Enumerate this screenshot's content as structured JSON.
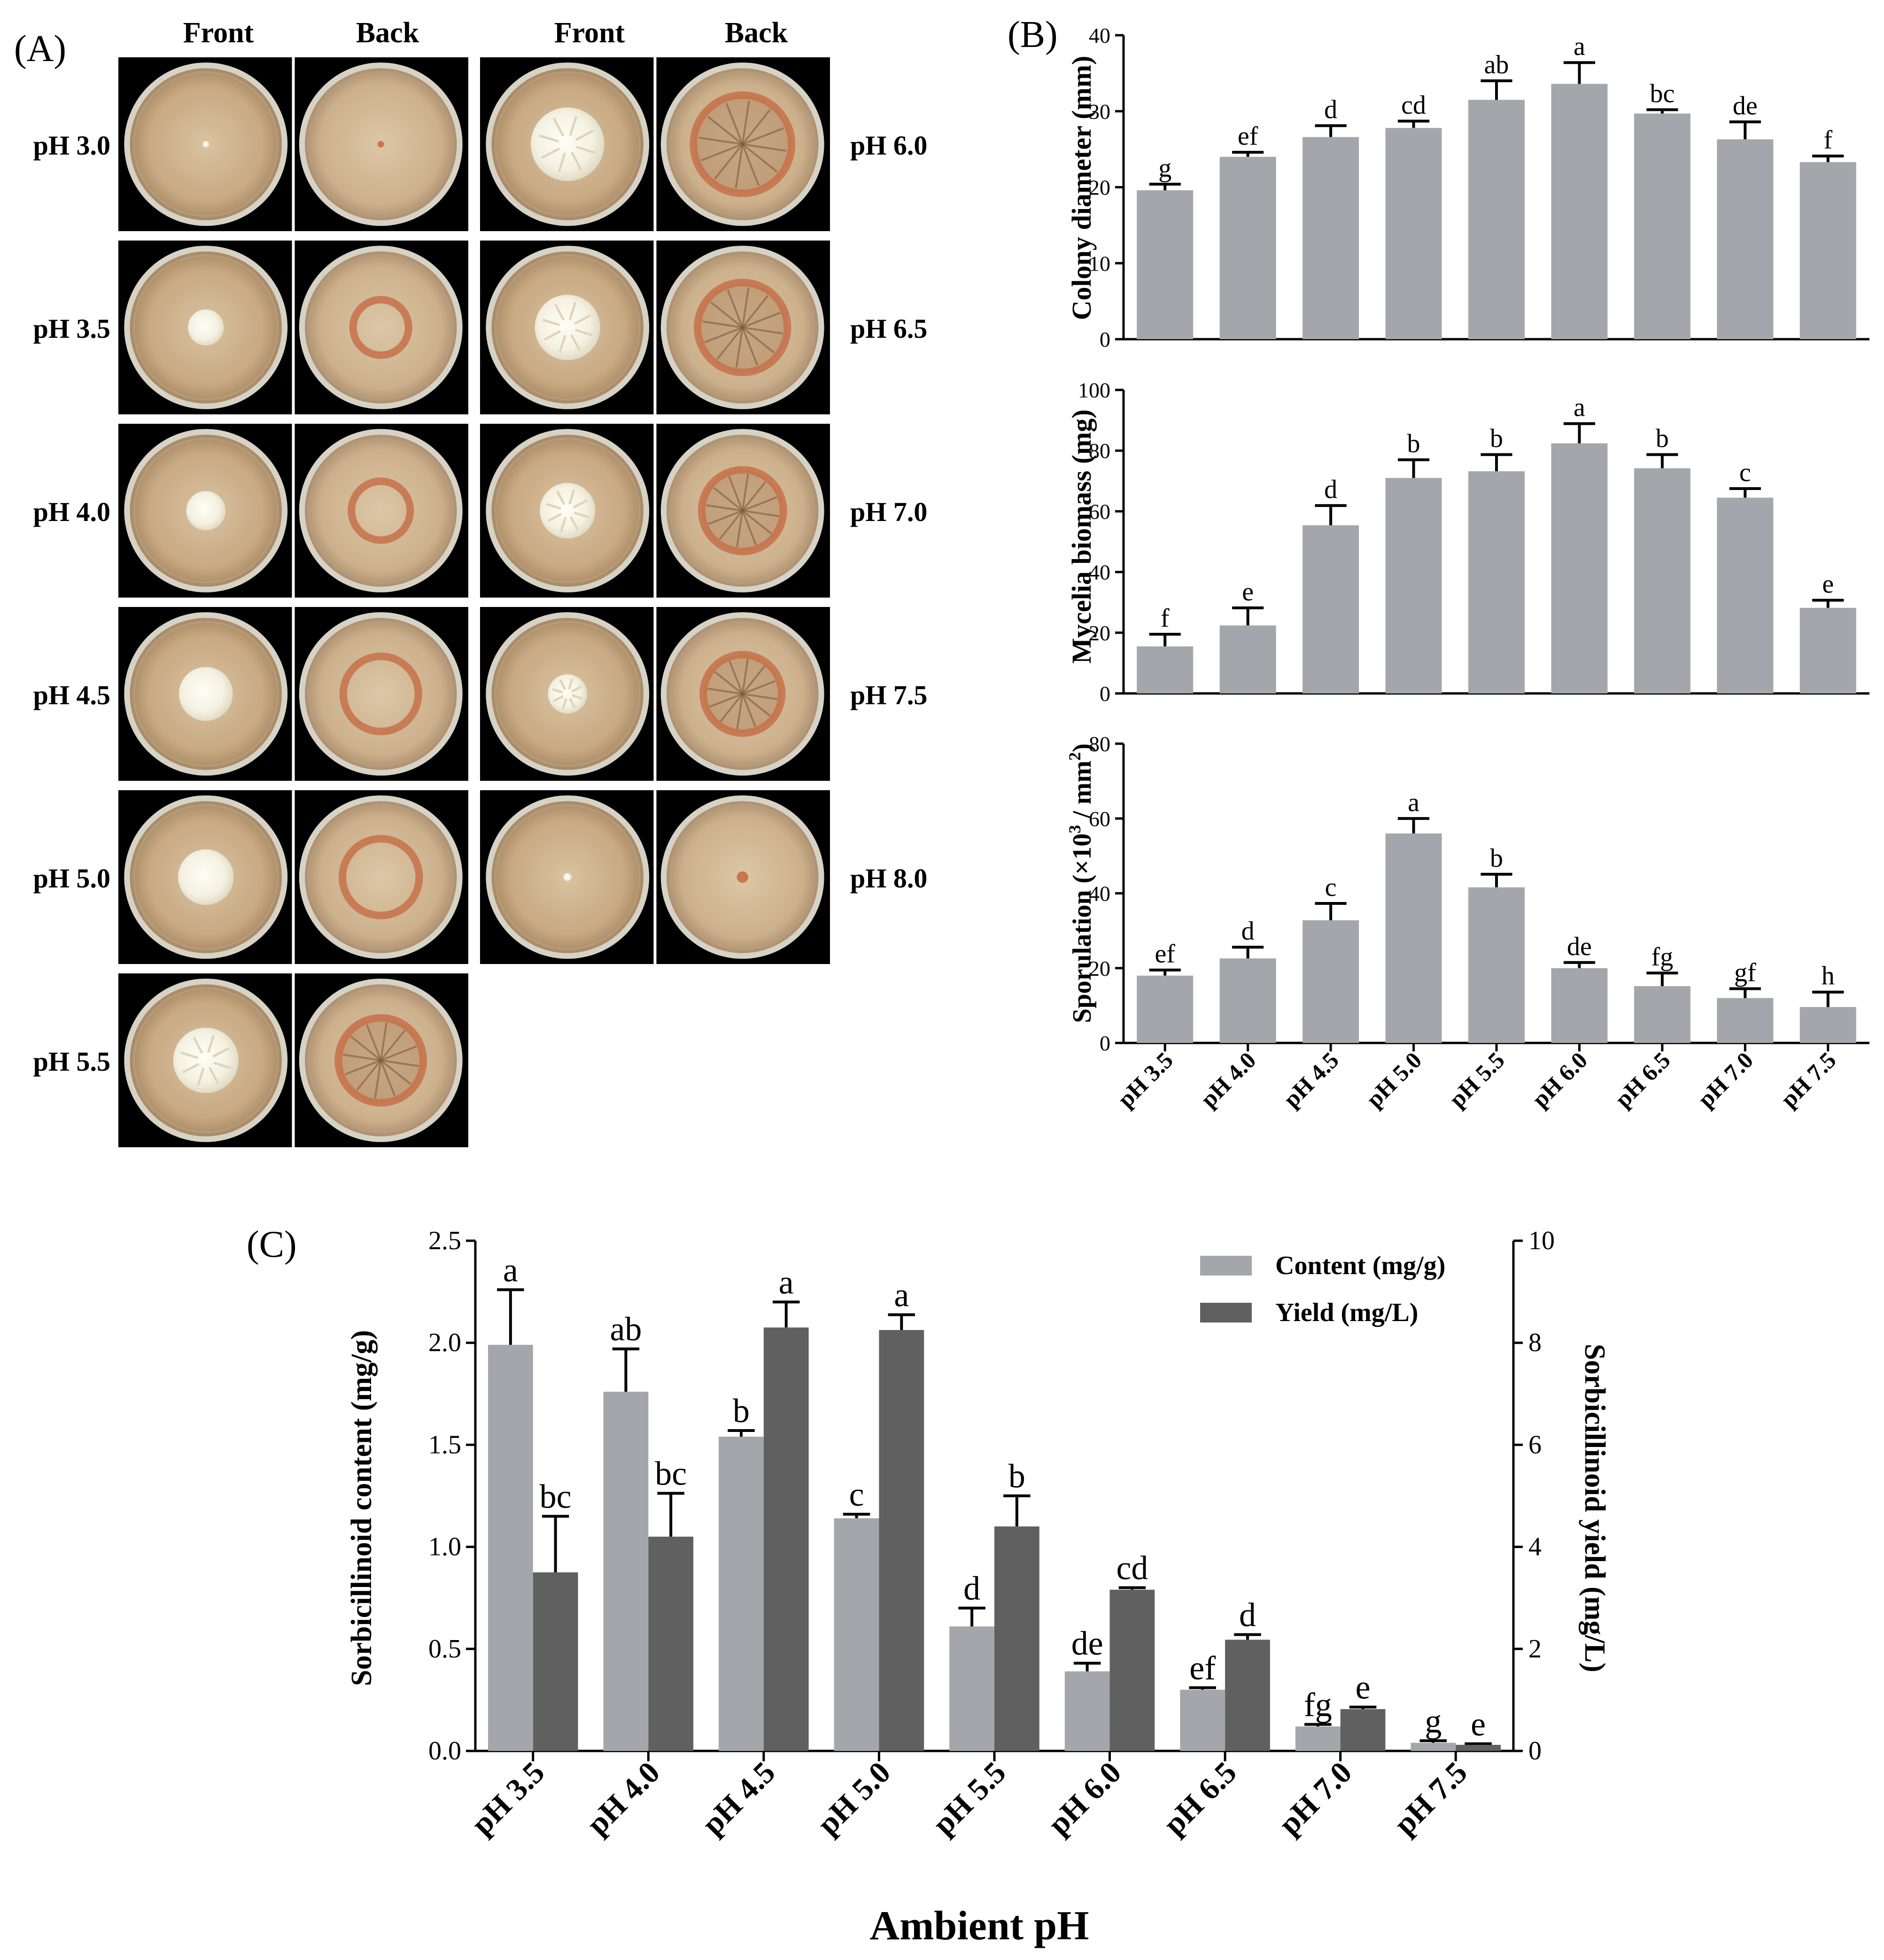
{
  "panel_a": {
    "label": "(A)",
    "col_headers": [
      "Front",
      "Back",
      "Front",
      "Back"
    ],
    "left_column": [
      {
        "ph": "pH 3.0",
        "colony": 0.04,
        "ring": 0.04,
        "cracks": false
      },
      {
        "ph": "pH 3.5",
        "colony": 0.22,
        "ring": 0.34,
        "cracks": false
      },
      {
        "ph": "pH 4.0",
        "colony": 0.24,
        "ring": 0.36,
        "cracks": false
      },
      {
        "ph": "pH 4.5",
        "colony": 0.33,
        "ring": 0.46,
        "cracks": false
      },
      {
        "ph": "pH 5.0",
        "colony": 0.34,
        "ring": 0.47,
        "cracks": false
      },
      {
        "ph": "pH 5.5",
        "colony": 0.4,
        "ring": 0.52,
        "cracks": true
      }
    ],
    "right_column": [
      {
        "ph": "pH 6.0",
        "colony": 0.45,
        "ring": 0.6,
        "cracks": true
      },
      {
        "ph": "pH 6.5",
        "colony": 0.4,
        "ring": 0.55,
        "cracks": true
      },
      {
        "ph": "pH 7.0",
        "colony": 0.34,
        "ring": 0.5,
        "cracks": true
      },
      {
        "ph": "pH 7.5",
        "colony": 0.24,
        "ring": 0.48,
        "cracks": true
      },
      {
        "ph": "pH 8.0",
        "colony": 0.05,
        "ring": 0.07,
        "cracks": false
      }
    ]
  },
  "chart_data": [
    {
      "type": "bar",
      "id": "B1",
      "panel_label": "(B)",
      "title": "",
      "ylabel": "Colony diameter (mm)",
      "xlabel": "",
      "ylim": [
        0,
        40
      ],
      "yticks": [
        "0",
        "10",
        "20",
        "30",
        "40"
      ],
      "categories": [
        "pH 3.5",
        "pH 4.0",
        "pH 4.5",
        "pH 5.0",
        "pH 5.5",
        "pH 6.0",
        "pH 6.5",
        "pH 7.0",
        "pH 7.5"
      ],
      "values": [
        19.6,
        24.0,
        26.6,
        27.8,
        31.5,
        33.6,
        29.7,
        26.3,
        23.3
      ],
      "errors": [
        0.8,
        0.6,
        1.5,
        0.9,
        2.5,
        2.8,
        0.5,
        2.3,
        0.8
      ],
      "letters": [
        "g",
        "ef",
        "d",
        "cd",
        "ab",
        "a",
        "bc",
        "de",
        "f"
      ]
    },
    {
      "type": "bar",
      "id": "B2",
      "title": "",
      "ylabel": "Mycelia biomass (mg)",
      "xlabel": "",
      "ylim": [
        0,
        100
      ],
      "yticks": [
        "0",
        "20",
        "40",
        "60",
        "80",
        "100"
      ],
      "categories": [
        "pH 3.5",
        "pH 4.0",
        "pH 4.5",
        "pH 5.0",
        "pH 5.5",
        "pH 6.0",
        "pH 6.5",
        "pH 7.0",
        "pH 7.5"
      ],
      "values": [
        15.5,
        22.4,
        55.4,
        71.0,
        73.2,
        82.4,
        74.2,
        64.5,
        28.2
      ],
      "errors": [
        4.0,
        5.8,
        6.5,
        6.0,
        5.5,
        6.5,
        4.5,
        3.0,
        2.5
      ],
      "letters": [
        "f",
        "e",
        "d",
        "b",
        "b",
        "a",
        "b",
        "c",
        "e"
      ]
    },
    {
      "type": "bar",
      "id": "B3",
      "title": "",
      "ylabel_prefix": "Sporulation (×10",
      "ylabel_sup": "3",
      "ylabel_mid": " / mm",
      "ylabel_sup2": "2",
      "ylabel_suffix": ")",
      "xlabel": "",
      "ylim": [
        0,
        80
      ],
      "yticks": [
        "0",
        "20",
        "40",
        "60",
        "80"
      ],
      "categories": [
        "pH 3.5",
        "pH 4.0",
        "pH 4.5",
        "pH 5.0",
        "pH 5.5",
        "pH 6.0",
        "pH 6.5",
        "pH 7.0",
        "pH 7.5"
      ],
      "values": [
        18.0,
        22.6,
        32.8,
        56.0,
        41.6,
        20.0,
        15.2,
        12.0,
        9.6
      ],
      "errors": [
        1.5,
        3.0,
        4.5,
        4.0,
        3.5,
        1.5,
        3.5,
        2.5,
        4.0
      ],
      "letters": [
        "ef",
        "d",
        "c",
        "a",
        "b",
        "de",
        "fg",
        "gf",
        "h"
      ]
    },
    {
      "type": "bar",
      "id": "C",
      "panel_label": "(C)",
      "title": "",
      "xlabel": "Ambient pH",
      "ylabel": "Sorbicillinoid content (mg/g)",
      "y2label": "Sorbicillinoid yield (mg/L)",
      "ylim": [
        0,
        2.5
      ],
      "y2lim": [
        0,
        10
      ],
      "yticks": [
        "0.0",
        "0.5",
        "1.0",
        "1.5",
        "2.0",
        "2.5"
      ],
      "y2ticks": [
        "0",
        "2",
        "4",
        "6",
        "8",
        "10"
      ],
      "categories": [
        "pH 3.5",
        "pH 4.0",
        "pH 4.5",
        "pH 5.0",
        "pH 5.5",
        "pH 6.0",
        "pH 6.5",
        "pH 7.0",
        "pH 7.5"
      ],
      "legend_position": "top-right",
      "series": [
        {
          "name": "Content (mg/g)",
          "axis": "left",
          "color": "#a5a6ab",
          "values": [
            1.99,
            1.76,
            1.54,
            1.14,
            0.61,
            0.39,
            0.3,
            0.12,
            0.04
          ],
          "errors": [
            0.27,
            0.21,
            0.03,
            0.02,
            0.09,
            0.04,
            0.01,
            0.01,
            0.01
          ],
          "letters": [
            "a",
            "ab",
            "b",
            "c",
            "d",
            "de",
            "ef",
            "fg",
            "g"
          ]
        },
        {
          "name": "Yield (mg/L)",
          "axis": "right",
          "color": "#606060",
          "values": [
            3.5,
            4.2,
            8.3,
            8.25,
            4.4,
            3.16,
            2.18,
            0.82,
            0.12
          ],
          "errors": [
            1.1,
            0.85,
            0.5,
            0.3,
            0.6,
            0.04,
            0.1,
            0.04,
            0.02
          ],
          "letters": [
            "bc",
            "bc",
            "a",
            "a",
            "b",
            "cd",
            "d",
            "e",
            "e"
          ]
        }
      ]
    }
  ]
}
